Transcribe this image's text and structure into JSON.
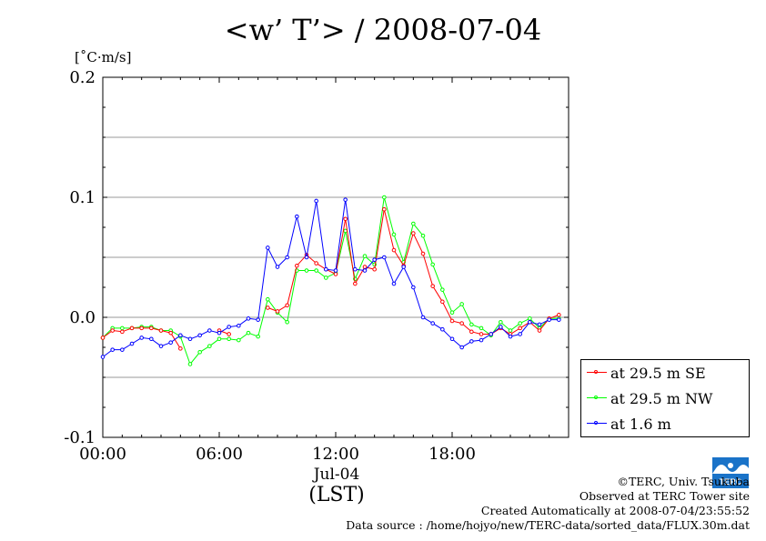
{
  "title": "<w’ T’> / 2008-07-04",
  "unit": "[˚C·m/s]",
  "chart_data": {
    "type": "line",
    "title": "<w’ T’> / 2008-07-04",
    "xlabel": "Jul-04",
    "xlabel2": "(LST)",
    "ylabel": "[˚C·m/s]",
    "xlim": [
      0,
      24
    ],
    "ylim": [
      -0.1,
      0.2
    ],
    "yticks": [
      -0.1,
      0.0,
      0.1,
      0.2
    ],
    "ytick_labels": [
      "-0.1",
      "0.0",
      "0.1",
      "0.2"
    ],
    "xticks": [
      0,
      6,
      12,
      18
    ],
    "xtick_labels": [
      "00:00",
      "06:00",
      "12:00",
      "18:00"
    ],
    "grid": "horizontal",
    "legend_position": "bottom-right outside",
    "x": [
      0.0,
      0.5,
      1.0,
      1.5,
      2.0,
      2.5,
      3.0,
      3.5,
      4.0,
      4.5,
      5.0,
      5.5,
      6.0,
      6.5,
      7.0,
      7.5,
      8.0,
      8.5,
      9.0,
      9.5,
      10.0,
      10.5,
      11.0,
      11.5,
      12.0,
      12.5,
      13.0,
      13.5,
      14.0,
      14.5,
      15.0,
      15.5,
      16.0,
      16.5,
      17.0,
      17.5,
      18.0,
      18.5,
      19.0,
      19.5,
      20.0,
      20.5,
      21.0,
      21.5,
      22.0,
      22.5,
      23.0,
      23.5
    ],
    "series": [
      {
        "name": "at 29.5 m SE",
        "color": "#ff0000",
        "values": [
          -0.017,
          -0.011,
          -0.012,
          -0.009,
          -0.009,
          -0.009,
          -0.011,
          -0.013,
          -0.026,
          null,
          null,
          null,
          -0.011,
          -0.014,
          null,
          null,
          null,
          0.008,
          0.005,
          0.01,
          0.043,
          0.052,
          0.045,
          0.04,
          0.036,
          0.082,
          0.028,
          0.042,
          0.04,
          0.09,
          0.056,
          0.043,
          0.07,
          0.053,
          0.026,
          0.013,
          -0.003,
          -0.005,
          -0.012,
          -0.014,
          -0.014,
          -0.009,
          -0.014,
          -0.009,
          -0.004,
          -0.011,
          -0.001,
          0.002
        ]
      },
      {
        "name": "at 29.5 m NW",
        "color": "#00ff00",
        "values": [
          -0.017,
          -0.009,
          -0.009,
          -0.009,
          -0.008,
          -0.008,
          -0.011,
          -0.011,
          -0.016,
          -0.039,
          -0.029,
          -0.024,
          -0.018,
          -0.018,
          -0.019,
          -0.013,
          -0.016,
          0.015,
          0.004,
          -0.004,
          0.039,
          0.039,
          0.039,
          0.033,
          0.037,
          0.072,
          0.032,
          0.051,
          0.044,
          0.1,
          0.069,
          0.046,
          0.078,
          0.068,
          0.044,
          0.023,
          0.004,
          0.011,
          -0.006,
          -0.009,
          -0.015,
          -0.004,
          -0.011,
          -0.005,
          -0.001,
          -0.009,
          -0.001,
          -0.001
        ]
      },
      {
        "name": "at 1.6 m",
        "color": "#0000ff",
        "values": [
          -0.033,
          -0.027,
          -0.027,
          -0.022,
          -0.017,
          -0.018,
          -0.024,
          -0.021,
          -0.015,
          -0.018,
          -0.015,
          -0.011,
          -0.013,
          -0.008,
          -0.007,
          -0.001,
          -0.002,
          0.058,
          0.042,
          0.05,
          0.084,
          0.05,
          0.097,
          0.04,
          0.039,
          0.098,
          0.04,
          0.039,
          0.048,
          0.05,
          0.028,
          0.042,
          0.025,
          0.0,
          -0.005,
          -0.01,
          -0.018,
          -0.025,
          -0.02,
          -0.019,
          -0.014,
          -0.008,
          -0.016,
          -0.014,
          -0.004,
          -0.006,
          -0.002,
          -0.002
        ]
      }
    ]
  },
  "legend": [
    {
      "label": "at 29.5 m SE",
      "color": "#ff0000"
    },
    {
      "label": "at 29.5 m NW",
      "color": "#00ff00"
    },
    {
      "label": "at 1.6 m",
      "color": "#0000ff"
    }
  ],
  "credits": {
    "line1": "©TERC, Univ. Tsukuba",
    "line2": "Observed at TERC Tower site",
    "line3": "Created Automatically at 2008-07-04/23:55:52",
    "line4": "Data source : /home/hojyo/new/TERC-data/sorted_data/FLUX.30m.dat"
  },
  "logo": {
    "text": "TERC",
    "color": "#1a73c8"
  }
}
